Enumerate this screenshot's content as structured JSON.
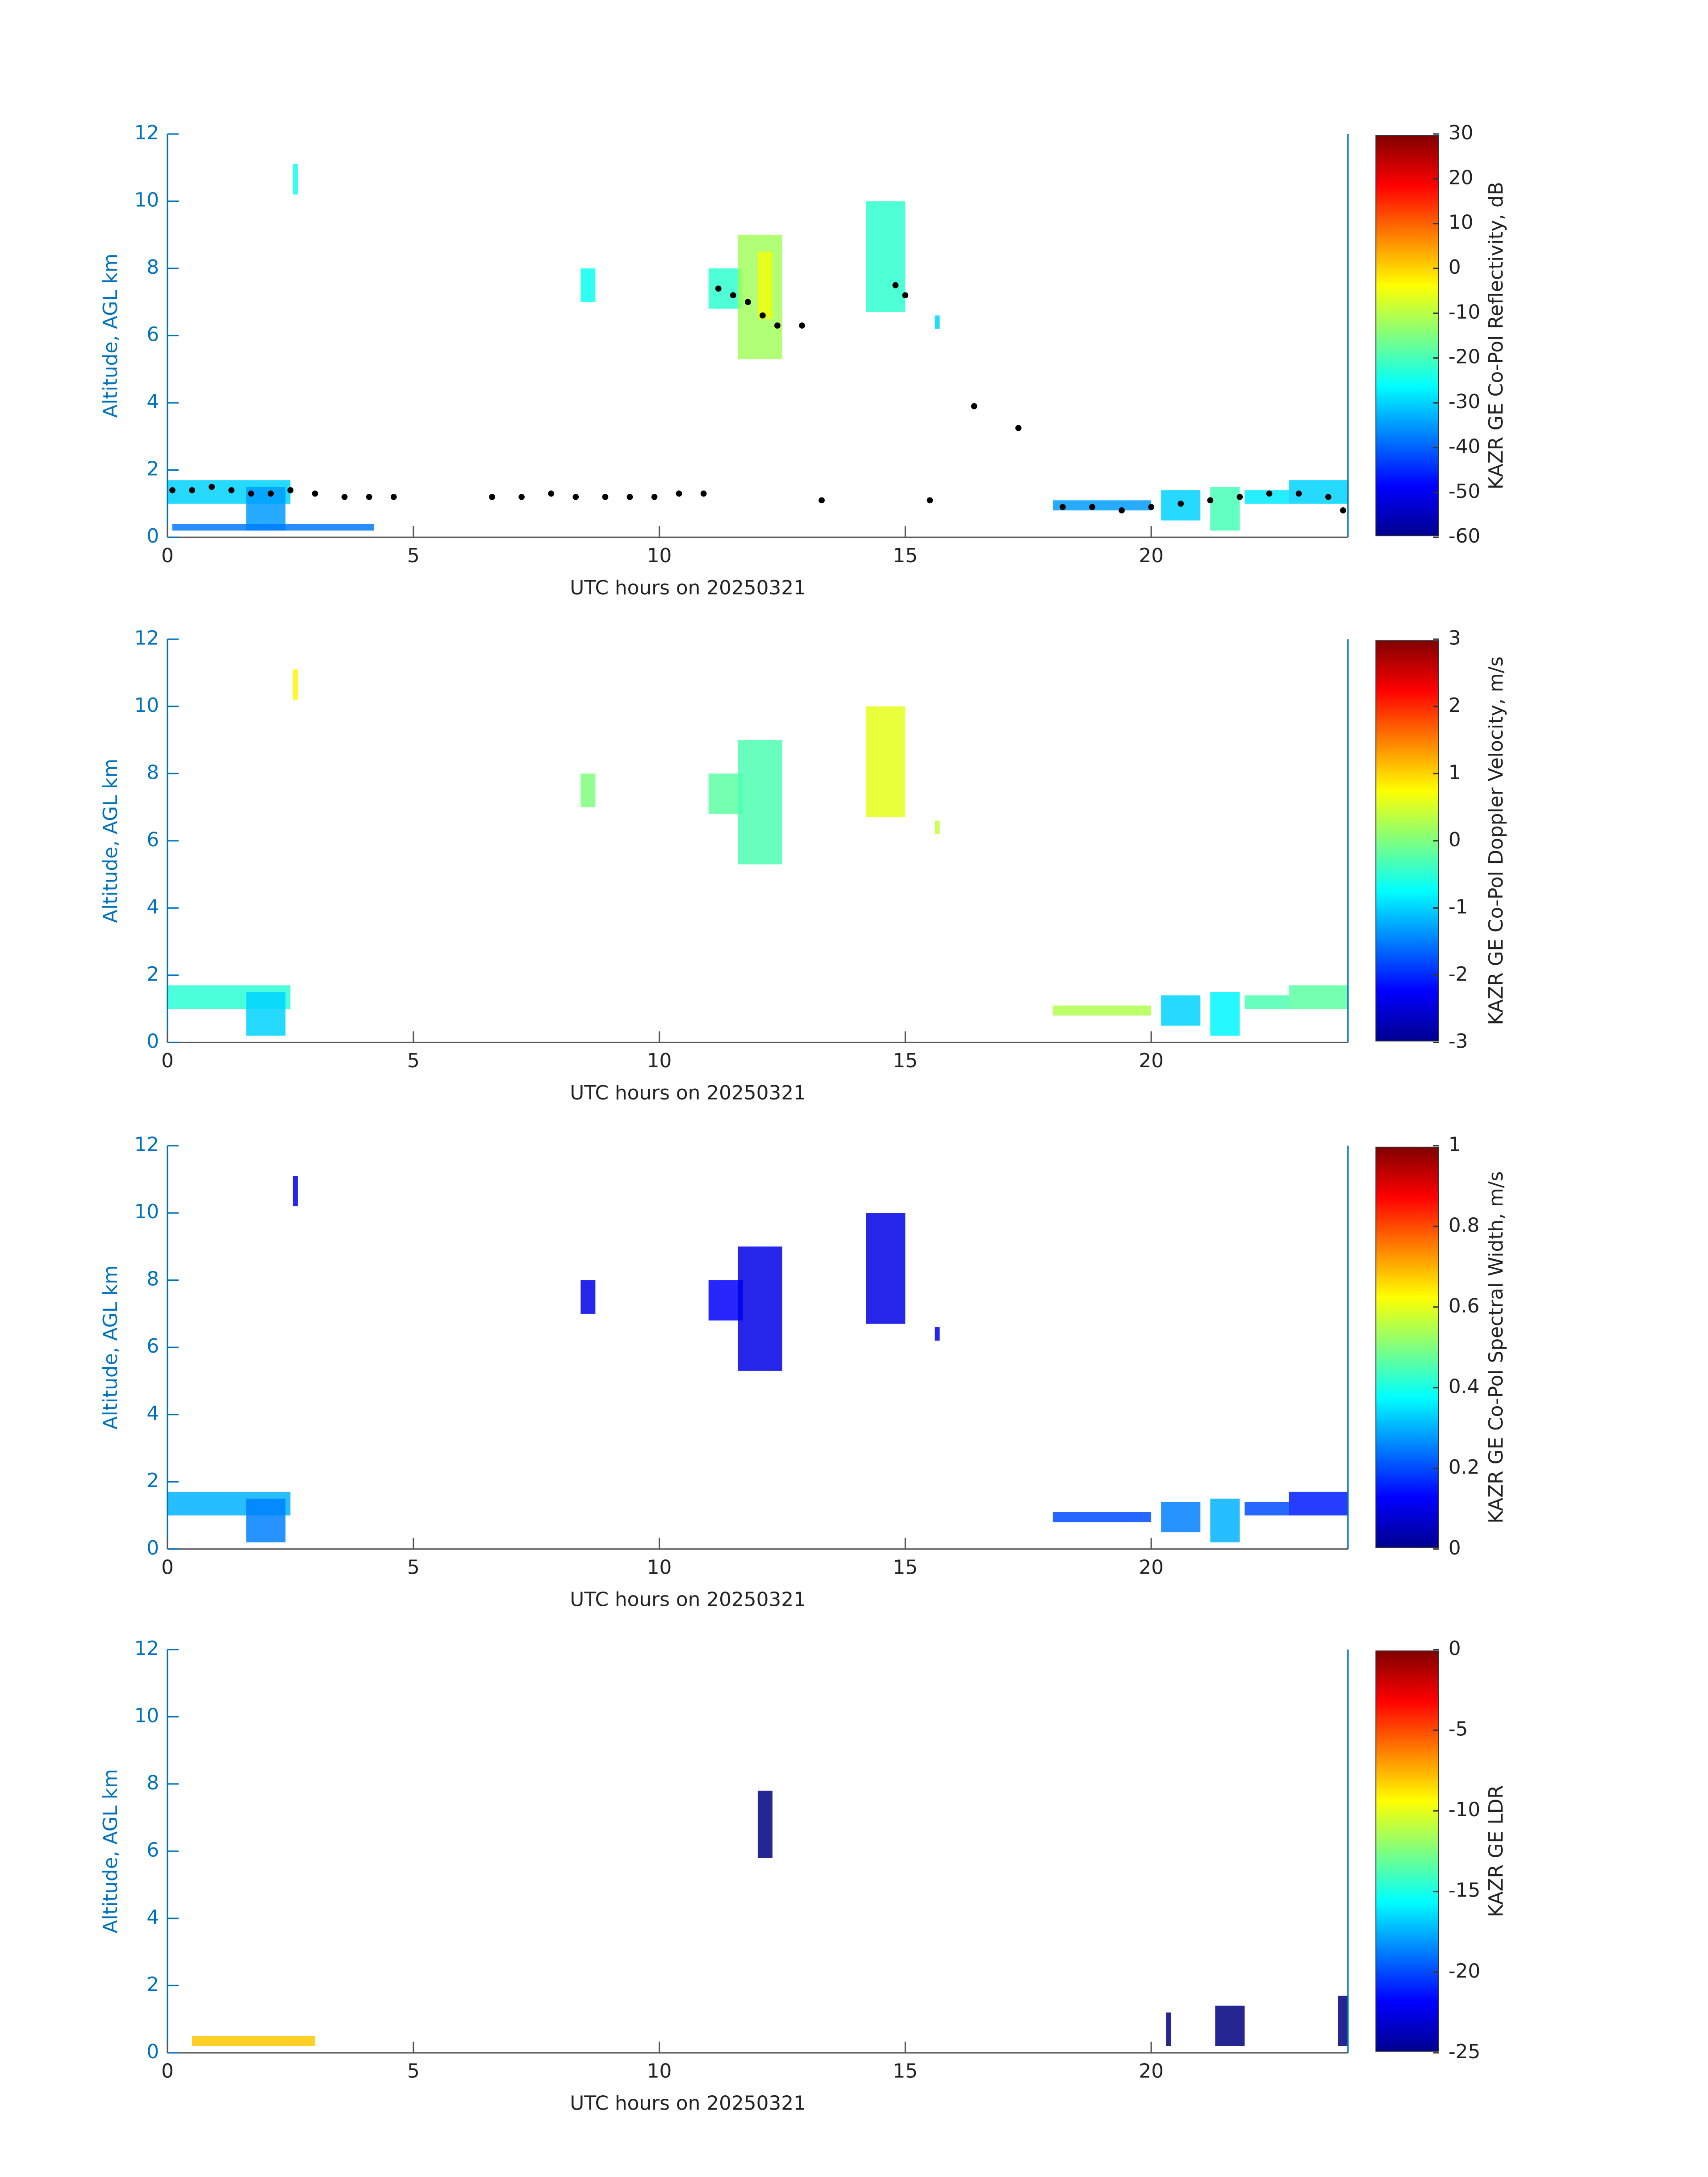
{
  "chart_data": [
    {
      "type": "heatmap",
      "xlabel": "UTC hours on 20250321",
      "ylabel": "Altitude, AGL km",
      "colorbar_label": "KAZR GE Co-Pol Reflectivity, dB",
      "xlim": [
        0,
        24
      ],
      "ylim": [
        0,
        12
      ],
      "xticks": [
        0,
        5,
        10,
        15,
        20
      ],
      "yticks": [
        0,
        2,
        4,
        6,
        8,
        10,
        12
      ],
      "clim": [
        -60,
        30
      ],
      "cticks": [
        -60,
        -50,
        -40,
        -30,
        -20,
        -10,
        0,
        10,
        20,
        30
      ],
      "echoes": [
        {
          "x": [
            0,
            2.5
          ],
          "y": [
            1.0,
            1.7
          ],
          "value": -30
        },
        {
          "x": [
            1.6,
            2.4
          ],
          "y": [
            0.2,
            1.5
          ],
          "value": -35
        },
        {
          "x": [
            0.1,
            4.2
          ],
          "y": [
            0.2,
            0.4
          ],
          "value": -38
        },
        {
          "x": [
            2.55,
            2.65
          ],
          "y": [
            10.2,
            11.1
          ],
          "value": -25
        },
        {
          "x": [
            8.4,
            8.7
          ],
          "y": [
            7.0,
            8.0
          ],
          "value": -25
        },
        {
          "x": [
            11.0,
            11.7
          ],
          "y": [
            6.8,
            8.0
          ],
          "value": -22
        },
        {
          "x": [
            11.6,
            12.5
          ],
          "y": [
            5.3,
            9.0
          ],
          "value": -12
        },
        {
          "x": [
            12.0,
            12.3
          ],
          "y": [
            6.5,
            8.5
          ],
          "value": -5
        },
        {
          "x": [
            14.2,
            15.0
          ],
          "y": [
            6.7,
            10.0
          ],
          "value": -22
        },
        {
          "x": [
            15.6,
            15.7
          ],
          "y": [
            6.2,
            6.6
          ],
          "value": -30
        },
        {
          "x": [
            18,
            20
          ],
          "y": [
            0.8,
            1.1
          ],
          "value": -35
        },
        {
          "x": [
            20.2,
            21.0
          ],
          "y": [
            0.5,
            1.4
          ],
          "value": -30
        },
        {
          "x": [
            21.2,
            21.8
          ],
          "y": [
            0.2,
            1.5
          ],
          "value": -20
        },
        {
          "x": [
            21.9,
            22.8
          ],
          "y": [
            1.0,
            1.4
          ],
          "value": -28
        },
        {
          "x": [
            22.8,
            24
          ],
          "y": [
            1.0,
            1.7
          ],
          "value": -30
        }
      ],
      "points": {
        "color": "#000000",
        "x": [
          0.1,
          0.5,
          0.9,
          1.3,
          1.7,
          2.1,
          2.5,
          3.0,
          3.6,
          4.1,
          4.6,
          6.6,
          7.2,
          7.8,
          8.3,
          8.9,
          9.4,
          9.9,
          10.4,
          10.9,
          11.2,
          11.5,
          11.8,
          12.1,
          12.4,
          12.9,
          13.3,
          14.8,
          15.0,
          15.5,
          16.4,
          17.3,
          18.2,
          18.8,
          19.4,
          20.0,
          20.6,
          21.2,
          21.8,
          22.4,
          23.0,
          23.6,
          23.9
        ],
        "y": [
          1.4,
          1.4,
          1.5,
          1.4,
          1.3,
          1.3,
          1.4,
          1.3,
          1.2,
          1.2,
          1.2,
          1.2,
          1.2,
          1.3,
          1.2,
          1.2,
          1.2,
          1.2,
          1.3,
          1.3,
          7.4,
          7.2,
          7.0,
          6.6,
          6.3,
          6.3,
          1.1,
          7.5,
          7.2,
          1.1,
          3.9,
          3.25,
          0.9,
          0.9,
          0.8,
          0.9,
          1.0,
          1.1,
          1.2,
          1.3,
          1.3,
          1.2,
          0.8
        ]
      }
    },
    {
      "type": "heatmap",
      "xlabel": "UTC hours on 20250321",
      "ylabel": "Altitude, AGL km",
      "colorbar_label": "KAZR GE Co-Pol Doppler Velocity, m/s",
      "xlim": [
        0,
        24
      ],
      "ylim": [
        0,
        12
      ],
      "xticks": [
        0,
        5,
        10,
        15,
        20
      ],
      "yticks": [
        0,
        2,
        4,
        6,
        8,
        10,
        12
      ],
      "clim": [
        -3,
        3
      ],
      "cticks": [
        -3,
        -2,
        -1,
        0,
        1,
        2,
        3
      ],
      "echoes": [
        {
          "x": [
            0,
            2.5
          ],
          "y": [
            1.0,
            1.7
          ],
          "value": -0.5
        },
        {
          "x": [
            1.6,
            2.4
          ],
          "y": [
            0.2,
            1.5
          ],
          "value": -1
        },
        {
          "x": [
            2.55,
            2.65
          ],
          "y": [
            10.2,
            11.1
          ],
          "value": 0.8
        },
        {
          "x": [
            8.4,
            8.7
          ],
          "y": [
            7.0,
            8.0
          ],
          "value": 0
        },
        {
          "x": [
            11.0,
            11.7
          ],
          "y": [
            6.8,
            8.0
          ],
          "value": -0.2
        },
        {
          "x": [
            11.6,
            12.5
          ],
          "y": [
            5.3,
            9.0
          ],
          "value": -0.3
        },
        {
          "x": [
            14.2,
            15.0
          ],
          "y": [
            6.7,
            10.0
          ],
          "value": 0.6
        },
        {
          "x": [
            15.6,
            15.7
          ],
          "y": [
            6.2,
            6.6
          ],
          "value": 0.4
        },
        {
          "x": [
            18,
            20
          ],
          "y": [
            0.8,
            1.1
          ],
          "value": 0.3
        },
        {
          "x": [
            20.2,
            21.0
          ],
          "y": [
            0.5,
            1.4
          ],
          "value": -1
        },
        {
          "x": [
            21.2,
            21.8
          ],
          "y": [
            0.2,
            1.5
          ],
          "value": -0.8
        },
        {
          "x": [
            21.9,
            22.8
          ],
          "y": [
            1.0,
            1.4
          ],
          "value": -0.3
        },
        {
          "x": [
            22.8,
            24
          ],
          "y": [
            1.0,
            1.7
          ],
          "value": -0.2
        }
      ]
    },
    {
      "type": "heatmap",
      "xlabel": "UTC hours on 20250321",
      "ylabel": "Altitude, AGL km",
      "colorbar_label": "KAZR GE Co-Pol Spectral Width, m/s",
      "xlim": [
        0,
        24
      ],
      "ylim": [
        0,
        12
      ],
      "xticks": [
        0,
        5,
        10,
        15,
        20
      ],
      "yticks": [
        0,
        2,
        4,
        6,
        8,
        10,
        12
      ],
      "clim": [
        0,
        1
      ],
      "cticks": [
        0,
        0.2,
        0.4,
        0.6,
        0.8,
        1
      ],
      "echoes": [
        {
          "x": [
            0,
            2.5
          ],
          "y": [
            1.0,
            1.7
          ],
          "value": 0.3
        },
        {
          "x": [
            1.6,
            2.4
          ],
          "y": [
            0.2,
            1.5
          ],
          "value": 0.25
        },
        {
          "x": [
            2.55,
            2.65
          ],
          "y": [
            10.2,
            11.1
          ],
          "value": 0.1
        },
        {
          "x": [
            8.4,
            8.7
          ],
          "y": [
            7.0,
            8.0
          ],
          "value": 0.1
        },
        {
          "x": [
            11.0,
            11.7
          ],
          "y": [
            6.8,
            8.0
          ],
          "value": 0.12
        },
        {
          "x": [
            11.6,
            12.5
          ],
          "y": [
            5.3,
            9.0
          ],
          "value": 0.1
        },
        {
          "x": [
            14.2,
            15.0
          ],
          "y": [
            6.7,
            10.0
          ],
          "value": 0.1
        },
        {
          "x": [
            15.6,
            15.7
          ],
          "y": [
            6.2,
            6.6
          ],
          "value": 0.1
        },
        {
          "x": [
            18,
            20
          ],
          "y": [
            0.8,
            1.1
          ],
          "value": 0.2
        },
        {
          "x": [
            20.2,
            21.0
          ],
          "y": [
            0.5,
            1.4
          ],
          "value": 0.25
        },
        {
          "x": [
            21.2,
            21.8
          ],
          "y": [
            0.2,
            1.5
          ],
          "value": 0.3
        },
        {
          "x": [
            21.9,
            22.8
          ],
          "y": [
            1.0,
            1.4
          ],
          "value": 0.2
        },
        {
          "x": [
            22.8,
            24
          ],
          "y": [
            1.0,
            1.7
          ],
          "value": 0.15
        }
      ]
    },
    {
      "type": "heatmap",
      "xlabel": "UTC hours on 20250321",
      "ylabel": "Altitude, AGL km",
      "colorbar_label": "KAZR GE LDR",
      "xlim": [
        0,
        24
      ],
      "ylim": [
        0,
        12
      ],
      "xticks": [
        0,
        5,
        10,
        15,
        20
      ],
      "yticks": [
        0,
        2,
        4,
        6,
        8,
        10,
        12
      ],
      "clim": [
        -25,
        0
      ],
      "cticks": [
        -25,
        -20,
        -15,
        -10,
        -5,
        0
      ],
      "echoes": [
        {
          "x": [
            0.5,
            3.0
          ],
          "y": [
            0.2,
            0.5
          ],
          "value": -8
        },
        {
          "x": [
            12.0,
            12.3
          ],
          "y": [
            5.8,
            7.8
          ],
          "value": -25
        },
        {
          "x": [
            20.3,
            20.4
          ],
          "y": [
            0.2,
            1.2
          ],
          "value": -25
        },
        {
          "x": [
            21.3,
            21.9
          ],
          "y": [
            0.2,
            1.4
          ],
          "value": -25
        },
        {
          "x": [
            23.8,
            24
          ],
          "y": [
            0.2,
            1.7
          ],
          "value": -25
        }
      ]
    }
  ]
}
